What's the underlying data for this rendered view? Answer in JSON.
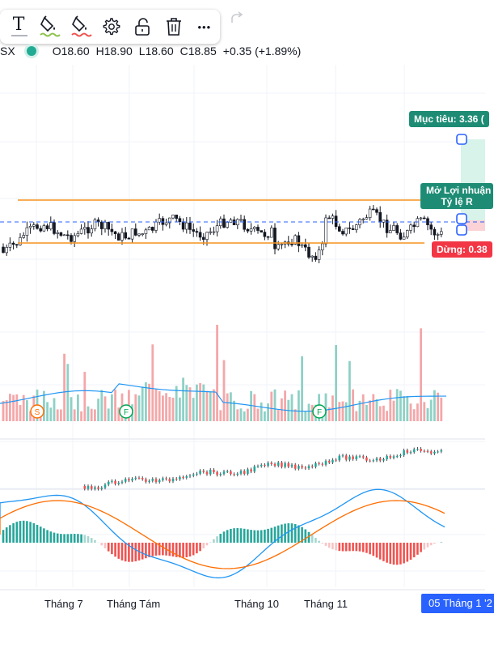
{
  "toolbar": {
    "tools": [
      "text-tool",
      "fill-color",
      "line-color",
      "settings",
      "lock",
      "delete",
      "more"
    ],
    "text_icon_glyph": "T",
    "more_glyph": "•••",
    "colors": {
      "fill_indicator": "#8bc34a",
      "line_indicator": "#ef5350"
    }
  },
  "legend": {
    "symbol": "SX",
    "open": "O18.60",
    "high": "H18.90",
    "low": "L18.60",
    "close": "C18.85",
    "change": "+0.35 (+1.89%)"
  },
  "position": {
    "target_label": "Mục tiêu: 3.36 (",
    "pl_line1": "Mở Lợi nhuận",
    "pl_line2": "Tỷ lệ R",
    "stop_label": "Dừng: 0.38",
    "colors": {
      "profit": "#1e8c74",
      "stop": "#f23645",
      "profit_zone": "#d7f3ea",
      "stop_zone": "#fbd3d6"
    }
  },
  "markers": {
    "splits": [
      "S"
    ],
    "futures": [
      "F",
      "F"
    ]
  },
  "x_axis": {
    "months": [
      "Tháng 7",
      "Tháng Tám",
      "Tháng 10",
      "Tháng 11"
    ],
    "crosshair_date": "05 Tháng 1 '2"
  },
  "colors": {
    "up": "#26a69a",
    "down": "#ef5350",
    "channel": "#f7931e",
    "dashed": "#2962ff",
    "volume_ma": "#2196f3",
    "macd": "#2196f3",
    "signal": "#ff6d00"
  }
}
